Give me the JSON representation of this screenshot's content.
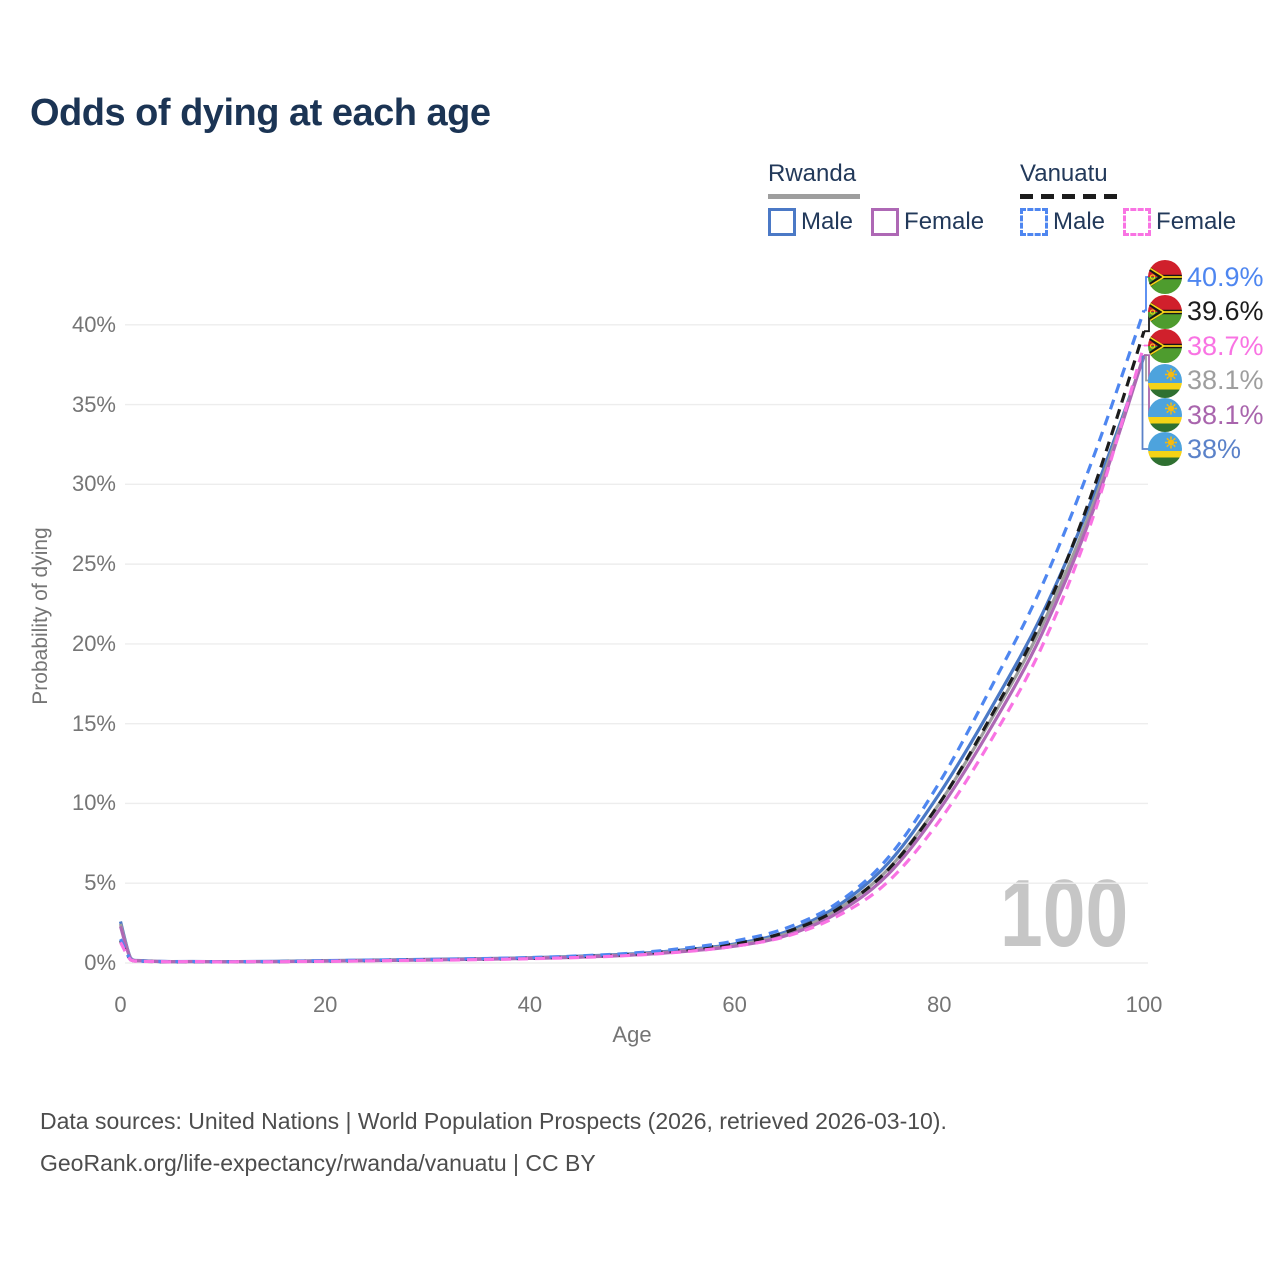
{
  "title": "Odds of dying at each age",
  "legend": {
    "groups": [
      {
        "name": "Rwanda",
        "line_style": "solid",
        "underline_color": "#9e9e9e",
        "items": [
          {
            "label": "Male",
            "color": "#4b79c6"
          },
          {
            "label": "Female",
            "color": "#ae68b5"
          }
        ]
      },
      {
        "name": "Vanuatu",
        "line_style": "dashed",
        "underline_color": "#1c1c1c",
        "items": [
          {
            "label": "Male",
            "color": "#4e86f0"
          },
          {
            "label": "Female",
            "color": "#f973e3"
          }
        ]
      }
    ]
  },
  "chart_data": {
    "type": "line",
    "title": "Odds of dying at each age",
    "xlabel": "Age",
    "ylabel": "Probability of dying",
    "xlim": [
      0,
      100
    ],
    "ylim": [
      0,
      42
    ],
    "grid": "horizontal",
    "gridline_color": "#ededed",
    "x_ticks": [
      0,
      20,
      40,
      60,
      80,
      100
    ],
    "y_tick_values": [
      0,
      5,
      10,
      15,
      20,
      25,
      30,
      35,
      40
    ],
    "y_tick_labels": [
      "0%",
      "5%",
      "10%",
      "15%",
      "20%",
      "25%",
      "30%",
      "35%",
      "40%"
    ],
    "ages": [
      0,
      1,
      2,
      5,
      10,
      15,
      20,
      25,
      30,
      35,
      40,
      45,
      50,
      55,
      60,
      65,
      70,
      75,
      80,
      85,
      90,
      95,
      100
    ],
    "series": [
      {
        "name": "Rwanda Male",
        "country": "Rwanda",
        "sex": "Male",
        "color": "#4b79c6",
        "dashed": false,
        "values": [
          2.6,
          0.3,
          0.15,
          0.09,
          0.08,
          0.1,
          0.15,
          0.19,
          0.23,
          0.27,
          0.33,
          0.43,
          0.57,
          0.82,
          1.2,
          1.95,
          3.55,
          6.25,
          10.6,
          15.9,
          21.8,
          29.2,
          38.0
        ]
      },
      {
        "name": "Rwanda Total",
        "country": "Rwanda",
        "sex": "Both",
        "color": "#9e9e9e",
        "dashed": false,
        "values": [
          2.45,
          0.28,
          0.14,
          0.08,
          0.07,
          0.09,
          0.13,
          0.17,
          0.21,
          0.25,
          0.31,
          0.4,
          0.53,
          0.77,
          1.12,
          1.82,
          3.32,
          5.88,
          10.0,
          15.2,
          21.1,
          28.7,
          38.1
        ]
      },
      {
        "name": "Rwanda Female",
        "country": "Rwanda",
        "sex": "Female",
        "color": "#ae68b5",
        "dashed": false,
        "values": [
          2.3,
          0.26,
          0.13,
          0.08,
          0.07,
          0.08,
          0.11,
          0.15,
          0.19,
          0.23,
          0.29,
          0.37,
          0.5,
          0.72,
          1.05,
          1.71,
          3.12,
          5.55,
          9.6,
          14.7,
          20.6,
          28.3,
          38.1
        ]
      },
      {
        "name": "Vanuatu Total",
        "country": "Vanuatu",
        "sex": "Both",
        "color": "#1c1c1c",
        "dashed": true,
        "values": [
          1.4,
          0.2,
          0.11,
          0.07,
          0.06,
          0.08,
          0.12,
          0.16,
          0.2,
          0.24,
          0.3,
          0.4,
          0.55,
          0.81,
          1.22,
          1.93,
          3.35,
          5.85,
          10.0,
          15.4,
          21.5,
          29.6,
          39.6
        ]
      },
      {
        "name": "Vanuatu Male",
        "country": "Vanuatu",
        "sex": "Male",
        "color": "#4e86f0",
        "dashed": true,
        "values": [
          1.5,
          0.22,
          0.12,
          0.08,
          0.07,
          0.09,
          0.14,
          0.18,
          0.22,
          0.27,
          0.34,
          0.45,
          0.62,
          0.92,
          1.38,
          2.18,
          3.75,
          6.6,
          11.3,
          17.2,
          23.6,
          31.6,
          40.9
        ]
      },
      {
        "name": "Vanuatu Female",
        "country": "Vanuatu",
        "sex": "Female",
        "color": "#f973e3",
        "dashed": true,
        "values": [
          1.3,
          0.19,
          0.1,
          0.07,
          0.06,
          0.07,
          0.1,
          0.14,
          0.17,
          0.21,
          0.27,
          0.35,
          0.48,
          0.7,
          1.05,
          1.66,
          2.92,
          5.1,
          8.9,
          13.9,
          19.8,
          27.9,
          38.7
        ]
      }
    ],
    "legend_position": "top-right"
  },
  "end_labels": [
    {
      "text": "40.9%",
      "value": 40.9,
      "series": "Vanuatu Male",
      "flag": "Vanuatu",
      "color": "#4e86f0"
    },
    {
      "text": "39.6%",
      "value": 39.6,
      "series": "Vanuatu Total",
      "flag": "Vanuatu",
      "color": "#1c1c1c"
    },
    {
      "text": "38.7%",
      "value": 38.7,
      "series": "Vanuatu Female",
      "flag": "Vanuatu",
      "color": "#f973e3"
    },
    {
      "text": "38.1%",
      "value": 38.1,
      "series": "Rwanda Total",
      "flag": "Rwanda",
      "color": "#9e9e9e"
    },
    {
      "text": "38.1%",
      "value": 38.1,
      "series": "Rwanda Female",
      "flag": "Rwanda",
      "color": "#a965ad"
    },
    {
      "text": "38%",
      "value": 38.0,
      "series": "Rwanda Male",
      "flag": "Rwanda",
      "color": "#5b82c9"
    }
  ],
  "watermark": "100",
  "footer": {
    "line1": "Data sources: United Nations | World Population Prospects (2026, retrieved 2026-03-10).",
    "line2": "GeoRank.org/life-expectancy/rwanda/vanuatu | CC BY"
  }
}
